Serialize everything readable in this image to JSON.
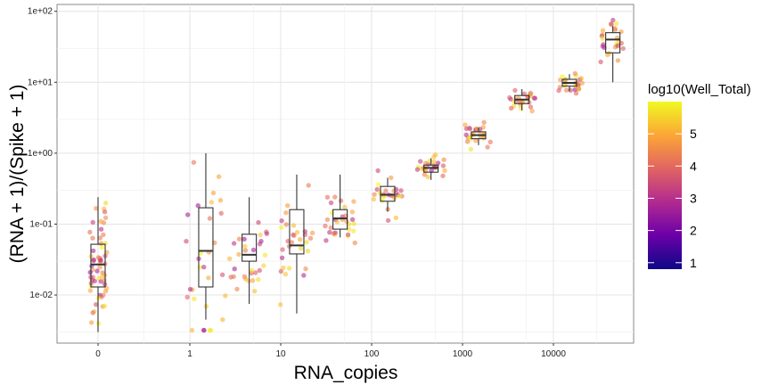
{
  "chart_data": {
    "type": "scatter",
    "subtype": "jittered points with boxplots",
    "xlabel": "RNA_copies",
    "ylabel": "(RNA + 1)/(Spike + 1)",
    "x_scale": "log",
    "y_scale": "log",
    "x_ticks": [
      "0",
      "1",
      "10",
      "100",
      "1000",
      "10000"
    ],
    "y_ticks": [
      "1e-02",
      "1e-01",
      "1e+00",
      "1e+01",
      "1e+02"
    ],
    "ylim": [
      0.0021,
      125
    ],
    "grid": true,
    "legend": {
      "title": "log10(Well_Total)",
      "position": "right",
      "type": "colorbar",
      "range": [
        0.8,
        6.0
      ],
      "labels": [
        "1",
        "2",
        "3",
        "4",
        "5"
      ],
      "colors": [
        "#0d0887",
        "#6a00a8",
        "#b12a90",
        "#e16462",
        "#fca636",
        "#f0f921"
      ]
    },
    "groups": [
      {
        "x": "0",
        "min": 0.003,
        "q1": 0.013,
        "median": 0.027,
        "q3": 0.052,
        "max": 0.24
      },
      {
        "x": "1.5",
        "min": 0.0045,
        "q1": 0.013,
        "median": 0.042,
        "q3": 0.17,
        "max": 1.0
      },
      {
        "x": "4.5",
        "min": 0.0075,
        "q1": 0.03,
        "median": 0.037,
        "q3": 0.072,
        "max": 0.24
      },
      {
        "x": "15",
        "min": 0.0055,
        "q1": 0.038,
        "median": 0.05,
        "q3": 0.16,
        "max": 0.5
      },
      {
        "x": "45",
        "min": 0.065,
        "q1": 0.085,
        "median": 0.12,
        "q3": 0.16,
        "max": 0.5
      },
      {
        "x": "150",
        "min": 0.15,
        "q1": 0.21,
        "median": 0.26,
        "q3": 0.34,
        "max": 0.45
      },
      {
        "x": "450",
        "min": 0.42,
        "q1": 0.54,
        "median": 0.62,
        "q3": 0.68,
        "max": 0.85
      },
      {
        "x": "1500",
        "min": 1.3,
        "q1": 1.6,
        "median": 1.8,
        "q3": 2.0,
        "max": 2.3
      },
      {
        "x": "4500",
        "min": 4.0,
        "q1": 5.0,
        "median": 5.7,
        "q3": 6.5,
        "max": 8.0
      },
      {
        "x": "15000",
        "min": 7.5,
        "q1": 8.8,
        "median": 9.8,
        "q3": 11.0,
        "max": 13.0
      },
      {
        "x": "45000",
        "min": 10.0,
        "q1": 26.0,
        "median": 40.0,
        "q3": 50.0,
        "max": 62.0
      }
    ]
  }
}
